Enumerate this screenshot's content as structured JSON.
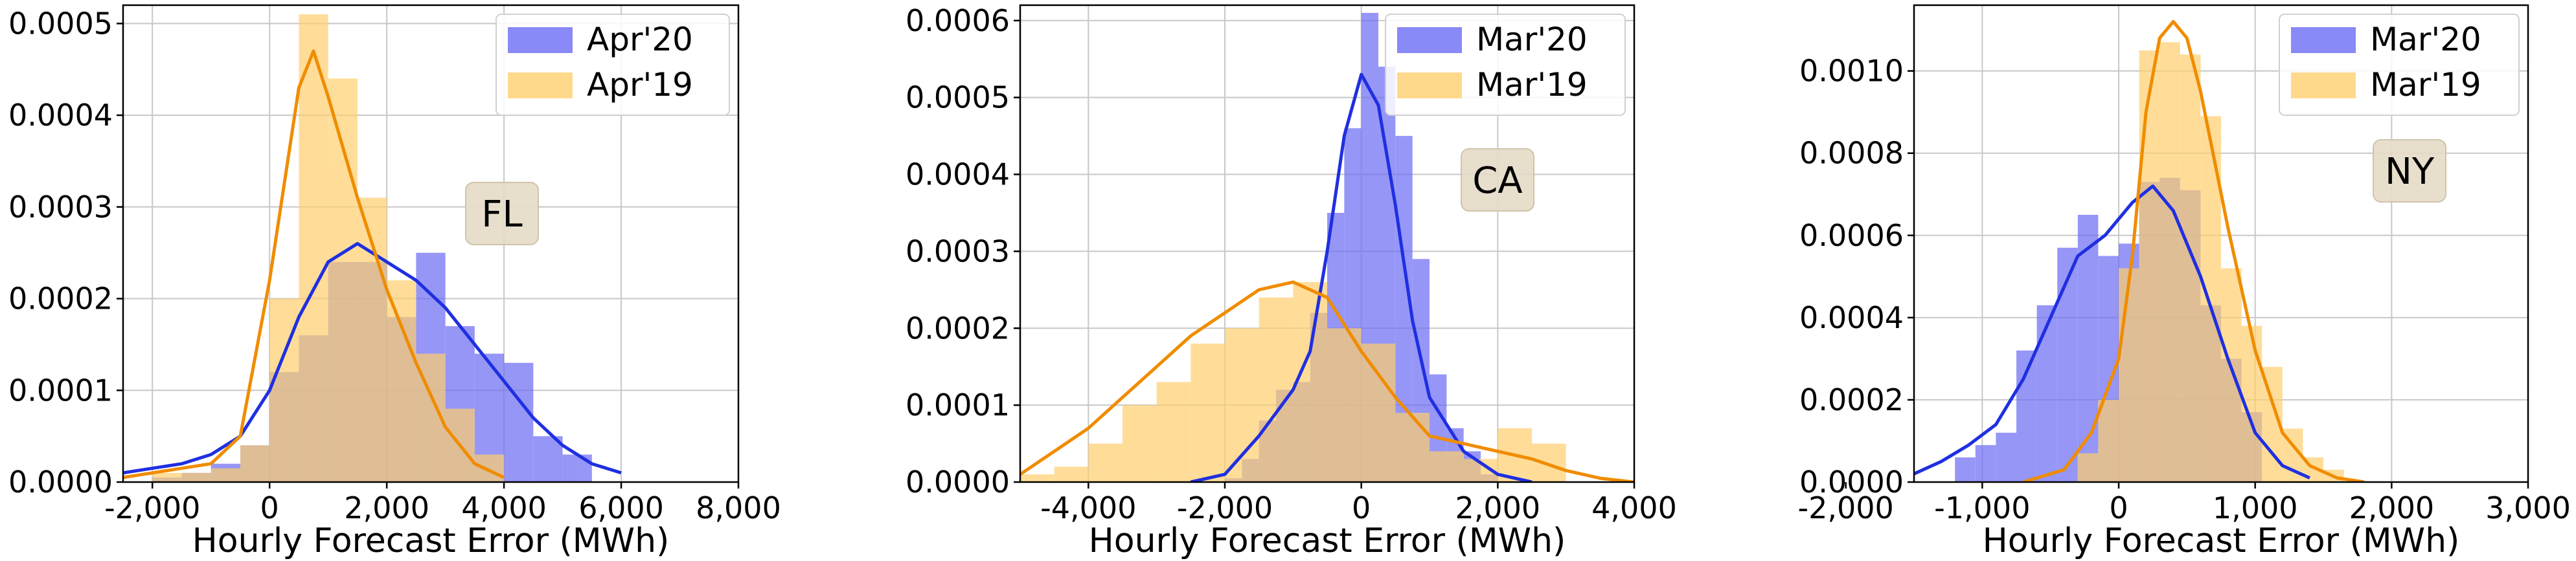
{
  "figure": {
    "xlabel": "Hourly Forecast Error (MWh)"
  },
  "chart_data": [
    {
      "type": "bar",
      "subtype": "histogram with density curves",
      "annotation": "FL",
      "xlabel": "Hourly Forecast Error (MWh)",
      "ylabel": "",
      "xlim": [
        -2500,
        8000
      ],
      "ylim": [
        0,
        0.00052
      ],
      "xticks": [
        -2000,
        0,
        2000,
        4000,
        6000,
        8000
      ],
      "xtick_labels": [
        "-2,000",
        "0",
        "2,000",
        "4,000",
        "6,000",
        "8,000"
      ],
      "yticks": [
        0,
        0.0001,
        0.0002,
        0.0003,
        0.0004,
        0.0005
      ],
      "ytick_labels": [
        "0.0000",
        "0.0001",
        "0.0002",
        "0.0003",
        "0.0004",
        "0.0005"
      ],
      "grid": true,
      "legend_position": "top-right",
      "series": [
        {
          "name": "Apr'20",
          "color": "#6b6bf5",
          "line_color": "#1f2fe0",
          "bin_edges": [
            -2000,
            -1500,
            -1000,
            -500,
            0,
            500,
            1000,
            1500,
            2000,
            2500,
            3000,
            3500,
            4000,
            4500,
            5000,
            5500
          ],
          "hist": [
            5e-06,
            1e-05,
            2e-05,
            4e-05,
            0.00012,
            0.00016,
            0.00024,
            0.00024,
            0.00018,
            0.00025,
            0.00017,
            0.00014,
            0.00013,
            5e-05,
            3e-05
          ],
          "kde_x": [
            -2500,
            -2000,
            -1500,
            -1000,
            -500,
            0,
            500,
            1000,
            1500,
            2000,
            2500,
            3000,
            3500,
            4000,
            4500,
            5000,
            5500,
            6000
          ],
          "kde_y": [
            1e-05,
            1.5e-05,
            2e-05,
            3e-05,
            5e-05,
            0.0001,
            0.00018,
            0.00024,
            0.00026,
            0.00024,
            0.00022,
            0.00019,
            0.00015,
            0.00011,
            7e-05,
            4e-05,
            2e-05,
            1e-05
          ]
        },
        {
          "name": "Apr'19",
          "color": "#ffd06e",
          "line_color": "#f08c00",
          "bin_edges": [
            -2000,
            -1500,
            -1000,
            -500,
            0,
            500,
            1000,
            1500,
            2000,
            2500,
            3000,
            3500,
            4000
          ],
          "hist": [
            1e-05,
            1e-05,
            1.5e-05,
            4e-05,
            0.0002,
            0.00051,
            0.00044,
            0.00031,
            0.00022,
            0.00014,
            8e-05,
            3e-05
          ],
          "kde_x": [
            -2500,
            -2000,
            -1500,
            -1000,
            -500,
            0,
            500,
            750,
            1000,
            1500,
            2000,
            2500,
            3000,
            3500,
            4000
          ],
          "kde_y": [
            5e-06,
            1e-05,
            1.5e-05,
            2e-05,
            5e-05,
            0.00022,
            0.00043,
            0.00047,
            0.00042,
            0.00031,
            0.00021,
            0.00013,
            6e-05,
            2e-05,
            5e-06
          ]
        }
      ]
    },
    {
      "type": "bar",
      "subtype": "histogram with density curves",
      "annotation": "CA",
      "xlabel": "Hourly Forecast Error (MWh)",
      "ylabel": "",
      "xlim": [
        -5000,
        4000
      ],
      "ylim": [
        0,
        0.00062
      ],
      "xticks": [
        -4000,
        -2000,
        0,
        2000,
        4000
      ],
      "xtick_labels": [
        "-4,000",
        "-2,000",
        "0",
        "2,000",
        "4,000"
      ],
      "yticks": [
        0,
        0.0001,
        0.0002,
        0.0003,
        0.0004,
        0.0005,
        0.0006
      ],
      "ytick_labels": [
        "0.0000",
        "0.0001",
        "0.0002",
        "0.0003",
        "0.0004",
        "0.0005",
        "0.0006"
      ],
      "grid": true,
      "legend_position": "top-right",
      "series": [
        {
          "name": "Mar'20",
          "color": "#6b6bf5",
          "line_color": "#1f2fe0",
          "bin_edges": [
            -2000,
            -1750,
            -1500,
            -1250,
            -1000,
            -750,
            -500,
            -250,
            0,
            250,
            500,
            750,
            1000,
            1250,
            1500,
            1750,
            2000
          ],
          "hist": [
            5e-06,
            3e-05,
            8e-05,
            0.00012,
            0.00013,
            0.00022,
            0.00035,
            0.00046,
            0.00061,
            0.00054,
            0.00045,
            0.00029,
            0.00014,
            7e-05,
            4e-05,
            1e-05
          ],
          "kde_x": [
            -2500,
            -2000,
            -1500,
            -1000,
            -750,
            -500,
            -250,
            0,
            250,
            500,
            750,
            1000,
            1500,
            2000,
            2500
          ],
          "kde_y": [
            0.0,
            1e-05,
            6e-05,
            0.00012,
            0.00017,
            0.0003,
            0.00045,
            0.00053,
            0.00049,
            0.00036,
            0.00021,
            0.00011,
            4e-05,
            1e-05,
            0.0
          ]
        },
        {
          "name": "Mar'19",
          "color": "#ffd06e",
          "line_color": "#f08c00",
          "bin_edges": [
            -5000,
            -4500,
            -4000,
            -3500,
            -3000,
            -2500,
            -2000,
            -1500,
            -1000,
            -500,
            0,
            500,
            1000,
            1500,
            2000,
            2500,
            3000
          ],
          "hist": [
            1e-05,
            2e-05,
            5e-05,
            0.0001,
            0.00013,
            0.00018,
            0.0002,
            0.00024,
            0.00026,
            0.0002,
            0.00018,
            9e-05,
            4e-05,
            3e-05,
            7e-05,
            5e-05
          ],
          "kde_x": [
            -5000,
            -4500,
            -4000,
            -3500,
            -3000,
            -2500,
            -2000,
            -1500,
            -1000,
            -500,
            0,
            500,
            1000,
            1500,
            2000,
            2500,
            3000,
            3500,
            4000
          ],
          "kde_y": [
            1e-05,
            4e-05,
            7e-05,
            0.00011,
            0.00015,
            0.00019,
            0.00022,
            0.00025,
            0.00026,
            0.00024,
            0.00017,
            0.00011,
            6e-05,
            5e-05,
            4e-05,
            3e-05,
            1.5e-05,
            5e-06,
            0.0
          ]
        }
      ]
    },
    {
      "type": "bar",
      "subtype": "histogram with density curves",
      "annotation": "NY",
      "xlabel": "Hourly Forecast Error (MWh)",
      "ylabel": "",
      "xlim": [
        -1500,
        3000
      ],
      "ylim": [
        0,
        0.00116
      ],
      "xticks": [
        -2000,
        -1000,
        0,
        1000,
        2000,
        3000
      ],
      "xtick_labels": [
        "-2,000",
        "-1,000",
        "0",
        "1,000",
        "2,000",
        "3,000"
      ],
      "yticks": [
        0,
        0.0002,
        0.0004,
        0.0006,
        0.0008,
        0.001
      ],
      "ytick_labels": [
        "0.0000",
        "0.0002",
        "0.0004",
        "0.0006",
        "0.0008",
        "0.0010"
      ],
      "grid": true,
      "legend_position": "top-right",
      "series": [
        {
          "name": "Mar'20",
          "color": "#6b6bf5",
          "line_color": "#1f2fe0",
          "bin_edges": [
            -1200,
            -1050,
            -900,
            -750,
            -600,
            -450,
            -300,
            -150,
            0,
            150,
            300,
            450,
            600,
            750,
            900,
            1050
          ],
          "hist": [
            6e-05,
            9e-05,
            0.00012,
            0.00032,
            0.00043,
            0.00057,
            0.00065,
            0.00055,
            0.00058,
            0.00073,
            0.00074,
            0.00071,
            0.00043,
            0.0003,
            0.00017
          ],
          "kde_x": [
            -1500,
            -1300,
            -1100,
            -900,
            -700,
            -500,
            -300,
            -100,
            100,
            250,
            400,
            600,
            800,
            1000,
            1200,
            1400
          ],
          "kde_y": [
            2e-05,
            5e-05,
            9e-05,
            0.00014,
            0.00025,
            0.0004,
            0.00055,
            0.0006,
            0.00068,
            0.00072,
            0.00066,
            0.0005,
            0.0003,
            0.00012,
            4e-05,
            1e-05
          ]
        },
        {
          "name": "Mar'19",
          "color": "#ffd06e",
          "line_color": "#f08c00",
          "bin_edges": [
            -300,
            -150,
            0,
            150,
            300,
            450,
            600,
            750,
            900,
            1050,
            1200,
            1350,
            1500,
            1650
          ],
          "hist": [
            7e-05,
            0.0002,
            0.00052,
            0.00105,
            0.00107,
            0.00104,
            0.00089,
            0.00052,
            0.00038,
            0.00028,
            0.00013,
            6e-05,
            3e-05
          ],
          "kde_x": [
            -700,
            -400,
            -200,
            0,
            100,
            200,
            300,
            400,
            500,
            600,
            800,
            1000,
            1200,
            1400,
            1600,
            1800
          ],
          "kde_y": [
            0.0,
            3e-05,
            0.00012,
            0.0003,
            0.00055,
            0.0009,
            0.00108,
            0.00112,
            0.00108,
            0.00095,
            0.00062,
            0.00032,
            0.00012,
            4e-05,
            1e-05,
            0.0
          ]
        }
      ]
    }
  ]
}
